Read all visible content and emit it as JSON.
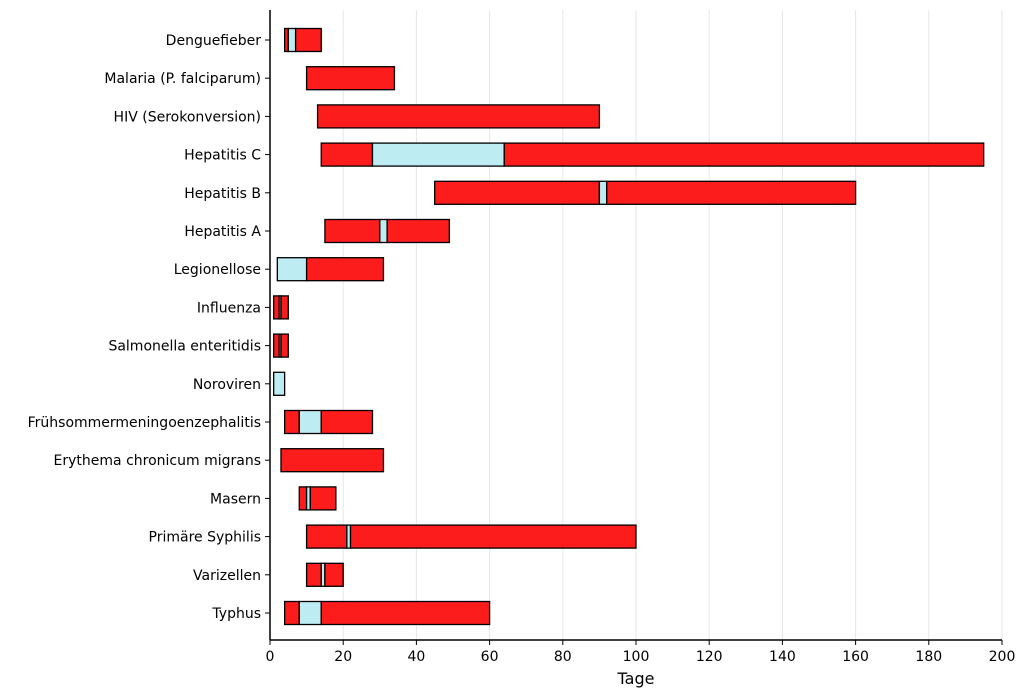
{
  "chart_data": {
    "type": "bar",
    "orientation": "horizontal",
    "stacked": true,
    "xlabel": "Tage",
    "ylabel": "",
    "title": "",
    "xlim": [
      0,
      200
    ],
    "xticks": [
      0,
      20,
      40,
      60,
      80,
      100,
      120,
      140,
      160,
      180,
      200
    ],
    "grid": "vertical",
    "colors": {
      "red": "#fc1c1c",
      "lightblue": "#bdecf3"
    },
    "categories": [
      "Denguefieber",
      "Malaria (P. falciparum)",
      "HIV (Serokonversion)",
      "Hepatitis C",
      "Hepatitis B",
      "Hepatitis A",
      "Legionellose",
      "Influenza",
      "Salmonella enteritidis",
      "Noroviren",
      "Frühsommermeningoenzephalitis",
      "Erythema chronicum migrans",
      "Masern",
      "Primäre Syphilis",
      "Varizellen",
      "Typhus"
    ],
    "bars": [
      {
        "category": "Denguefieber",
        "segments": [
          {
            "start": 4,
            "end": 5,
            "color": "red"
          },
          {
            "start": 5,
            "end": 7,
            "color": "lightblue"
          },
          {
            "start": 7,
            "end": 14,
            "color": "red"
          }
        ]
      },
      {
        "category": "Malaria (P. falciparum)",
        "segments": [
          {
            "start": 10,
            "end": 34,
            "color": "red"
          }
        ]
      },
      {
        "category": "HIV (Serokonversion)",
        "segments": [
          {
            "start": 13,
            "end": 90,
            "color": "red"
          }
        ]
      },
      {
        "category": "Hepatitis C",
        "segments": [
          {
            "start": 14,
            "end": 28,
            "color": "red"
          },
          {
            "start": 28,
            "end": 64,
            "color": "lightblue"
          },
          {
            "start": 64,
            "end": 195,
            "color": "red"
          }
        ]
      },
      {
        "category": "Hepatitis B",
        "segments": [
          {
            "start": 45,
            "end": 90,
            "color": "red"
          },
          {
            "start": 90,
            "end": 92,
            "color": "lightblue"
          },
          {
            "start": 92,
            "end": 160,
            "color": "red"
          }
        ]
      },
      {
        "category": "Hepatitis A",
        "segments": [
          {
            "start": 15,
            "end": 30,
            "color": "red"
          },
          {
            "start": 30,
            "end": 32,
            "color": "lightblue"
          },
          {
            "start": 32,
            "end": 49,
            "color": "red"
          }
        ]
      },
      {
        "category": "Legionellose",
        "segments": [
          {
            "start": 2,
            "end": 10,
            "color": "lightblue"
          },
          {
            "start": 10,
            "end": 31,
            "color": "red"
          }
        ]
      },
      {
        "category": "Influenza",
        "segments": [
          {
            "start": 1,
            "end": 2.5,
            "color": "red"
          },
          {
            "start": 2.5,
            "end": 3,
            "color": "lightblue"
          },
          {
            "start": 3,
            "end": 5,
            "color": "red"
          }
        ]
      },
      {
        "category": "Salmonella enteritidis",
        "segments": [
          {
            "start": 1,
            "end": 2.5,
            "color": "red"
          },
          {
            "start": 2.5,
            "end": 3,
            "color": "lightblue"
          },
          {
            "start": 3,
            "end": 5,
            "color": "red"
          }
        ]
      },
      {
        "category": "Noroviren",
        "segments": [
          {
            "start": 1,
            "end": 4,
            "color": "lightblue"
          }
        ]
      },
      {
        "category": "Frühsommermeningoenzephalitis",
        "segments": [
          {
            "start": 4,
            "end": 8,
            "color": "red"
          },
          {
            "start": 8,
            "end": 14,
            "color": "lightblue"
          },
          {
            "start": 14,
            "end": 28,
            "color": "red"
          }
        ]
      },
      {
        "category": "Erythema chronicum migrans",
        "segments": [
          {
            "start": 3,
            "end": 31,
            "color": "red"
          }
        ]
      },
      {
        "category": "Masern",
        "segments": [
          {
            "start": 8,
            "end": 10,
            "color": "red"
          },
          {
            "start": 10,
            "end": 11,
            "color": "lightblue"
          },
          {
            "start": 11,
            "end": 18,
            "color": "red"
          }
        ]
      },
      {
        "category": "Primäre Syphilis",
        "segments": [
          {
            "start": 10,
            "end": 21,
            "color": "red"
          },
          {
            "start": 21,
            "end": 22,
            "color": "lightblue"
          },
          {
            "start": 22,
            "end": 100,
            "color": "red"
          }
        ]
      },
      {
        "category": "Varizellen",
        "segments": [
          {
            "start": 10,
            "end": 14,
            "color": "red"
          },
          {
            "start": 14,
            "end": 15,
            "color": "lightblue"
          },
          {
            "start": 15,
            "end": 20,
            "color": "red"
          }
        ]
      },
      {
        "category": "Typhus",
        "segments": [
          {
            "start": 4,
            "end": 8,
            "color": "red"
          },
          {
            "start": 8,
            "end": 14,
            "color": "lightblue"
          },
          {
            "start": 14,
            "end": 60,
            "color": "red"
          }
        ]
      }
    ]
  }
}
